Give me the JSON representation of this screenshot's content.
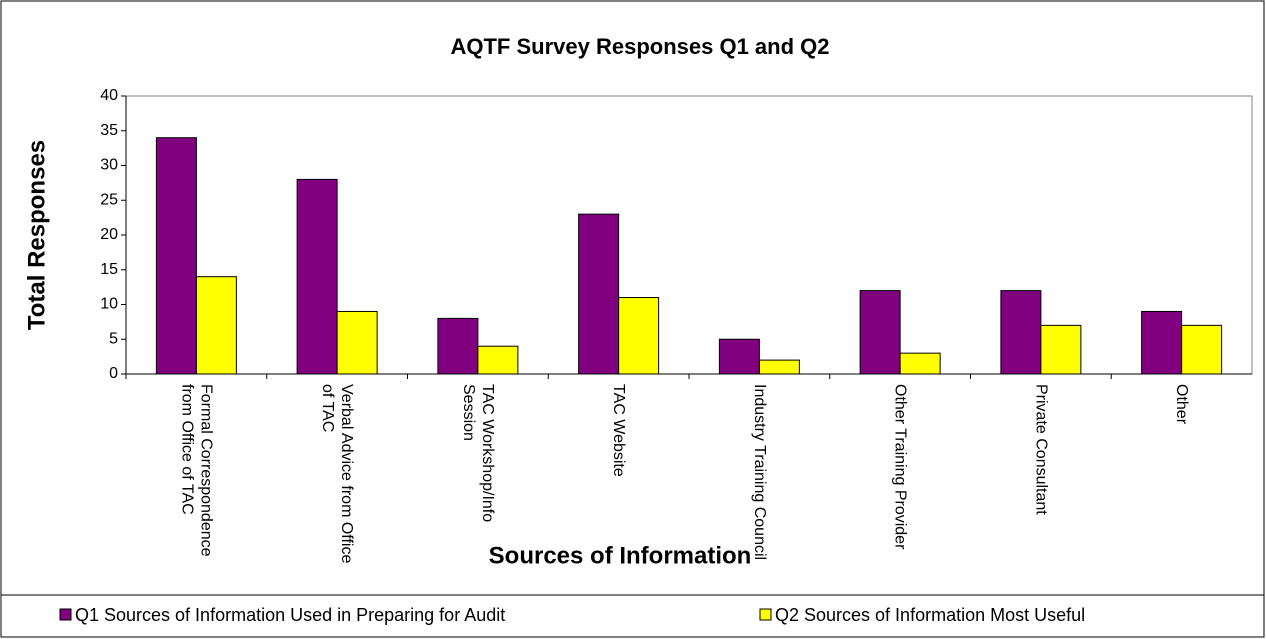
{
  "chart_data": {
    "type": "bar",
    "title": "AQTF Survey Responses Q1 and Q2",
    "x_label": "Sources of Information",
    "y_label": "Total Responses",
    "categories": [
      "Formal Correspondence from Office of TAC",
      "Verbal Advice from Office of TAC",
      "TAC Workshop/Info Session",
      "TAC Website",
      "Industry Training Council",
      "Other Training Provider",
      "Private Consultant",
      "Other"
    ],
    "series": [
      {
        "name": "Q1 Sources of Information Used in Preparing for Audit",
        "color": "#800080",
        "values": [
          34,
          28,
          8,
          23,
          5,
          12,
          12,
          9
        ]
      },
      {
        "name": "Q2 Sources of Information Most Useful",
        "color": "#ffff00",
        "values": [
          14,
          9,
          4,
          11,
          2,
          3,
          7,
          7
        ]
      }
    ],
    "ylim": [
      0,
      40
    ],
    "yticks": [
      0,
      5,
      10,
      15,
      20,
      25,
      30,
      35,
      40
    ],
    "grid": false,
    "legend": "bottom"
  }
}
